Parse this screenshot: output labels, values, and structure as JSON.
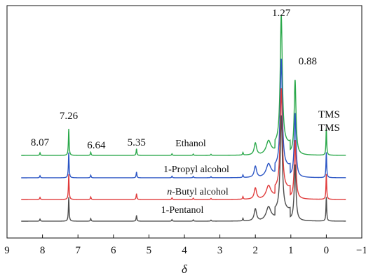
{
  "chart_data": {
    "type": "line",
    "xlabel": "δ",
    "xlim": [
      9,
      -1
    ],
    "x_ticks": [
      "9",
      "8",
      "7",
      "6",
      "5",
      "4",
      "3",
      "2",
      "1",
      "0",
      "−1"
    ],
    "grid": false,
    "series": [
      {
        "name": "Ethanol",
        "color": "#2aa84a",
        "peaks": [
          {
            "x": 8.07,
            "h": 0.1
          },
          {
            "x": 7.26,
            "h": 1.0
          },
          {
            "x": 6.64,
            "h": 0.12
          },
          {
            "x": 5.35,
            "h": 0.25
          },
          {
            "x": 4.35,
            "h": 0.06
          },
          {
            "x": 3.75,
            "h": 0.05
          },
          {
            "x": 3.25,
            "h": 0.04
          },
          {
            "x": 2.35,
            "h": 0.1
          },
          {
            "x": 2.0,
            "h": 0.45
          },
          {
            "x": 1.63,
            "h": 0.4
          },
          {
            "x": 1.27,
            "h": 4.9
          },
          {
            "x": 0.88,
            "h": 2.8
          },
          {
            "x": 0.0,
            "h": 1.0
          }
        ]
      },
      {
        "name": "1-Propyl alcohol",
        "color": "#2b55c4",
        "peaks": [
          {
            "x": 8.07,
            "h": 0.08
          },
          {
            "x": 7.26,
            "h": 0.95
          },
          {
            "x": 6.64,
            "h": 0.1
          },
          {
            "x": 5.35,
            "h": 0.22
          },
          {
            "x": 4.35,
            "h": 0.06
          },
          {
            "x": 3.75,
            "h": 0.05
          },
          {
            "x": 3.25,
            "h": 0.04
          },
          {
            "x": 2.35,
            "h": 0.1
          },
          {
            "x": 2.0,
            "h": 0.42
          },
          {
            "x": 1.63,
            "h": 0.38
          },
          {
            "x": 1.27,
            "h": 4.1
          },
          {
            "x": 0.88,
            "h": 2.4
          },
          {
            "x": 0.0,
            "h": 0.95
          }
        ]
      },
      {
        "name": "n-Butyl alcohol",
        "color": "#e03b3b",
        "peaks": [
          {
            "x": 8.07,
            "h": 0.08
          },
          {
            "x": 7.26,
            "h": 0.95
          },
          {
            "x": 6.64,
            "h": 0.1
          },
          {
            "x": 5.35,
            "h": 0.22
          },
          {
            "x": 4.35,
            "h": 0.06
          },
          {
            "x": 3.75,
            "h": 0.05
          },
          {
            "x": 3.25,
            "h": 0.04
          },
          {
            "x": 2.35,
            "h": 0.1
          },
          {
            "x": 2.0,
            "h": 0.42
          },
          {
            "x": 1.63,
            "h": 0.38
          },
          {
            "x": 1.27,
            "h": 3.8
          },
          {
            "x": 0.88,
            "h": 2.2
          },
          {
            "x": 0.0,
            "h": 0.95
          }
        ]
      },
      {
        "name": "1-Pentanol",
        "color": "#4d4d4d",
        "peaks": [
          {
            "x": 8.07,
            "h": 0.08
          },
          {
            "x": 7.26,
            "h": 0.9
          },
          {
            "x": 6.64,
            "h": 0.1
          },
          {
            "x": 5.35,
            "h": 0.22
          },
          {
            "x": 4.35,
            "h": 0.06
          },
          {
            "x": 3.75,
            "h": 0.05
          },
          {
            "x": 3.25,
            "h": 0.04
          },
          {
            "x": 2.35,
            "h": 0.1
          },
          {
            "x": 2.0,
            "h": 0.45
          },
          {
            "x": 1.63,
            "h": 0.4
          },
          {
            "x": 1.27,
            "h": 3.6
          },
          {
            "x": 0.88,
            "h": 2.1
          },
          {
            "x": 0.0,
            "h": 0.9
          }
        ]
      }
    ],
    "annotations": [
      {
        "text": "8.07",
        "x": 8.07
      },
      {
        "text": "7.26",
        "x": 7.26
      },
      {
        "text": "6.64",
        "x": 6.64
      },
      {
        "text": "5.35",
        "x": 5.35
      },
      {
        "text": "1.27",
        "x": 1.27
      },
      {
        "text": "0.88",
        "x": 0.88
      }
    ],
    "tms_labels": [
      "TMS",
      "TMS"
    ]
  }
}
